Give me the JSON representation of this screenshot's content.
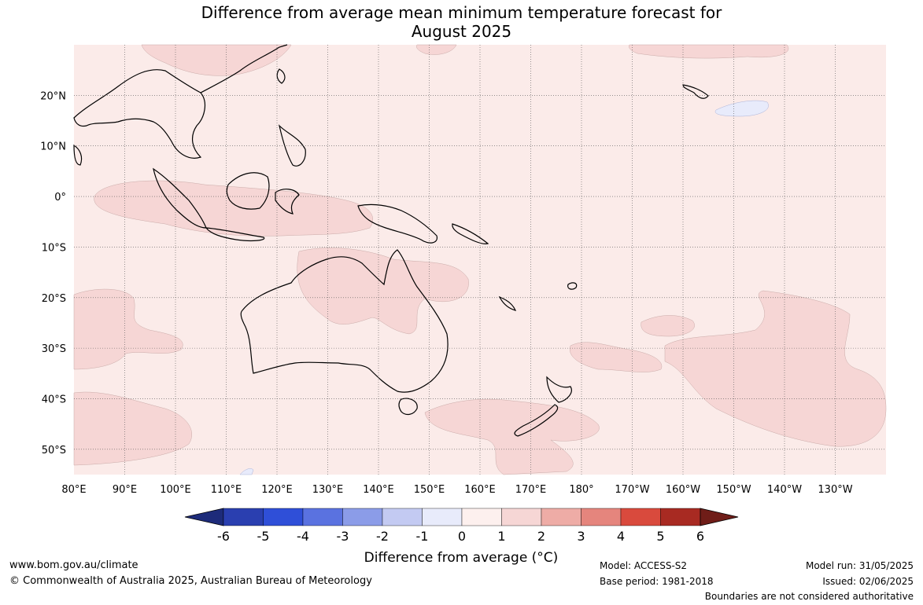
{
  "title": {
    "line1": "Difference from average mean minimum temperature forecast for",
    "line2": "August 2025"
  },
  "axes": {
    "lat_labels": [
      "20°N",
      "10°N",
      "0°",
      "10°S",
      "20°S",
      "30°S",
      "40°S",
      "50°S"
    ],
    "lon_labels": [
      "80°E",
      "90°E",
      "100°E",
      "110°E",
      "120°E",
      "130°E",
      "140°E",
      "150°E",
      "160°E",
      "170°E",
      "180°",
      "170°W",
      "160°W",
      "150°W",
      "140°W",
      "130°W"
    ],
    "lat_range": [
      -55,
      30
    ],
    "lon_range": [
      80,
      240
    ]
  },
  "colorbar": {
    "title": "Difference from average (°C)",
    "tick_labels": [
      "-6",
      "-5",
      "-4",
      "-3",
      "-2",
      "-1",
      "0",
      "1",
      "2",
      "3",
      "4",
      "5",
      "6"
    ],
    "colors": [
      "#1d2b7a",
      "#2a3fb0",
      "#2f4fd8",
      "#5a72e0",
      "#8b9ce8",
      "#c3caf2",
      "#e8ebfb",
      "#fdf0ee",
      "#f6d6d5",
      "#eeaca6",
      "#e5857d",
      "#d94a3d",
      "#a82a22",
      "#6f1d18"
    ]
  },
  "anomaly_colors": {
    "base": "#fbebe9",
    "warm": "#f6d6d5",
    "cool": "#e8ebfb"
  },
  "footer": {
    "website": "www.bom.gov.au/climate",
    "copyright": "© Commonwealth of Australia 2025, Australian Bureau of Meteorology",
    "model": "Model: ACCESS-S2",
    "base_period": "Base period: 1981-2018",
    "model_run": "Model run: 31/05/2025",
    "issued": "Issued: 02/06/2025",
    "disclaimer": "Boundaries are not considered authoritative"
  }
}
